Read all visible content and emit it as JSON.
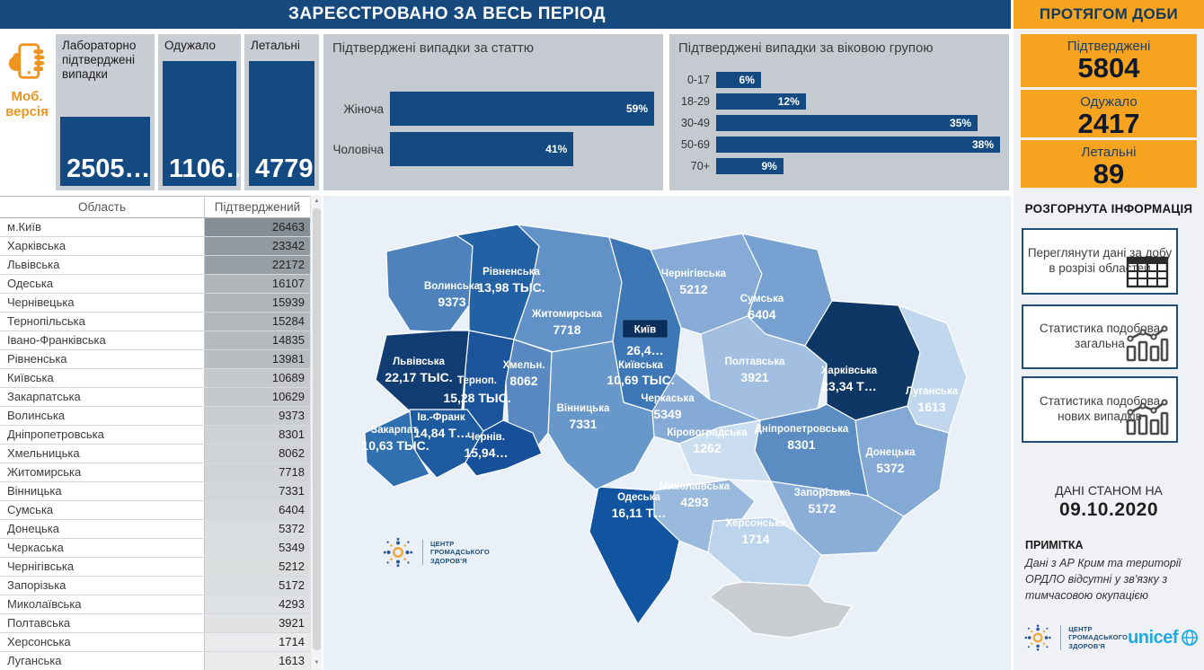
{
  "header": {
    "title": "ЗАРЕЄСТРОВАНО ЗА ВЕСЬ ПЕРІОД"
  },
  "mobile": {
    "label": "Моб. версія"
  },
  "kpi_cards": [
    {
      "label": "Лабораторно підтверджені випадки",
      "value": "2505…"
    },
    {
      "label": "Одужало",
      "value": "1106…"
    },
    {
      "label": "Летальні",
      "value": "4779"
    }
  ],
  "chart_data": [
    {
      "type": "bar",
      "orientation": "horizontal",
      "title": "Підтверджені випадки за статтю",
      "categories": [
        "Жіноча",
        "Чоловіча"
      ],
      "values": [
        59,
        41
      ],
      "value_labels": [
        "59%",
        "41%"
      ],
      "xlim": [
        0,
        59
      ],
      "bar_color": "#134a82"
    },
    {
      "type": "bar",
      "orientation": "horizontal",
      "title": "Підтверджені випадки за віковою групою",
      "categories": [
        "0-17",
        "18-29",
        "30-49",
        "50-69",
        "70+"
      ],
      "values": [
        6,
        12,
        35,
        38,
        9
      ],
      "value_labels": [
        "6%",
        "12%",
        "35%",
        "38%",
        "9%"
      ],
      "xlim": [
        0,
        38
      ],
      "bar_color": "#134a82"
    }
  ],
  "daily": {
    "title": "ПРОТЯГОМ ДОБИ",
    "cards": [
      {
        "label": "Підтверджені",
        "value": "5804"
      },
      {
        "label": "Одужало",
        "value": "2417"
      },
      {
        "label": "Летальні",
        "value": "89"
      }
    ]
  },
  "expanded_info": {
    "title": "РОЗГОРНУТА ІНФОРМАЦІЯ",
    "buttons": [
      {
        "label": "Переглянути дані за добу в розрізі областей",
        "icon": "table-icon"
      },
      {
        "label": "Статистика подобова загальна",
        "icon": "combo-chart-icon"
      },
      {
        "label": "Статистика подобова нових випадків",
        "icon": "combo-chart-icon"
      }
    ]
  },
  "data_as_of": {
    "label": "ДАНІ СТАНОМ НА",
    "date": "09.10.2020"
  },
  "note": {
    "title": "ПРИМІТКА",
    "text": "Дані з АР Крим та території ОРДЛО відсутні у зв'язку з тимчасовою окупацією"
  },
  "footer_logos": {
    "phc_lines": [
      "ЦЕНТР",
      "ГРОМАДСЬКОГО",
      "ЗДОРОВ'Я"
    ],
    "unicef_label": "unicef"
  },
  "table": {
    "columns": [
      "Область",
      "Підтверджений"
    ],
    "min": 1613,
    "max": 26463,
    "rows": [
      [
        "м.Київ",
        26463
      ],
      [
        "Харківська",
        23342
      ],
      [
        "Львівська",
        22172
      ],
      [
        "Одеська",
        16107
      ],
      [
        "Чернівецька",
        15939
      ],
      [
        "Тернопільська",
        15284
      ],
      [
        "Івано-Франківська",
        14835
      ],
      [
        "Рівненська",
        13981
      ],
      [
        "Київська",
        10689
      ],
      [
        "Закарпатська",
        10629
      ],
      [
        "Волинська",
        9373
      ],
      [
        "Дніпропетровська",
        8301
      ],
      [
        "Хмельницька",
        8062
      ],
      [
        "Житомирська",
        7718
      ],
      [
        "Вінницька",
        7331
      ],
      [
        "Сумська",
        6404
      ],
      [
        "Донецька",
        5372
      ],
      [
        "Черкаська",
        5349
      ],
      [
        "Чернігівська",
        5212
      ],
      [
        "Запорізька",
        5172
      ],
      [
        "Миколаївська",
        4293
      ],
      [
        "Полтавська",
        3921
      ],
      [
        "Херсонська",
        1714
      ],
      [
        "Луганська",
        1613
      ]
    ]
  },
  "map": {
    "kyiv_badge": {
      "name": "Київ",
      "value_label": "26,4…",
      "color": "#0a2f5c"
    },
    "regions": [
      {
        "id": "volyn",
        "name": "Волинська",
        "value": 9373,
        "value_label": "9373",
        "color": "#4e82bc"
      },
      {
        "id": "rivne",
        "name": "Рівненська",
        "value": 13981,
        "value_label": "13,98 ТЫС.",
        "color": "#2161a4"
      },
      {
        "id": "zhytomyr",
        "name": "Житомирська",
        "value": 7718,
        "value_label": "7718",
        "color": "#6191c6"
      },
      {
        "id": "kyivska",
        "name": "Київська",
        "value": 10689,
        "value_label": "10,69 ТЫС.",
        "color": "#3d77b5"
      },
      {
        "id": "chernihiv",
        "name": "Чернігівська",
        "value": 5212,
        "value_label": "5212",
        "color": "#87abd6"
      },
      {
        "id": "sumy",
        "name": "Сумська",
        "value": 6404,
        "value_label": "6404",
        "color": "#76a1d0"
      },
      {
        "id": "poltava",
        "name": "Полтавська",
        "value": 3921,
        "value_label": "3921",
        "color": "#a2bfe1"
      },
      {
        "id": "kharkiv",
        "name": "Харківська",
        "value": 23342,
        "value_label": "23,34 Т…",
        "color": "#0e3765"
      },
      {
        "id": "luhansk",
        "name": "Луганська",
        "value": 1613,
        "value_label": "1613",
        "color": "#c1d7ed"
      },
      {
        "id": "donetsk",
        "name": "Донецька",
        "value": 5372,
        "value_label": "5372",
        "color": "#84a9d5"
      },
      {
        "id": "dnipro",
        "name": "Дніпропетровська",
        "value": 8301,
        "value_label": "8301",
        "color": "#5b8cc2"
      },
      {
        "id": "zaporizhzhia",
        "name": "Запорізька",
        "value": 5172,
        "value_label": "5172",
        "color": "#8aaed7"
      },
      {
        "id": "kherson",
        "name": "Херсонська",
        "value": 1714,
        "value_label": "1714",
        "color": "#bcd4ec"
      },
      {
        "id": "mykolaiv",
        "name": "Миколаївська",
        "value": 4293,
        "value_label": "4293",
        "color": "#99b9dd"
      },
      {
        "id": "odesa",
        "name": "Одеська",
        "value": 16107,
        "value_label": "16,11 Т…",
        "color": "#1155a0"
      },
      {
        "id": "kirovohrad",
        "name": "Кіровоградська",
        "value": 1262,
        "value_label": "1262",
        "color": "#cadef0"
      },
      {
        "id": "cherkasy",
        "name": "Черкаська",
        "value": 5349,
        "value_label": "5349",
        "color": "#85aad5"
      },
      {
        "id": "vinnytsia",
        "name": "Вінницька",
        "value": 7331,
        "value_label": "7331",
        "color": "#6897c9"
      },
      {
        "id": "khmelnytsky",
        "name": "Хмельн.",
        "value": 8062,
        "value_label": "8062",
        "color": "#5989c0"
      },
      {
        "id": "ternopil",
        "name": "Терноп.",
        "value": 15284,
        "value_label": "15,28 ТЫС.",
        "color": "#1b549a"
      },
      {
        "id": "lviv",
        "name": "Львівська",
        "value": 22172,
        "value_label": "22,17 ТЫС.",
        "color": "#123d72"
      },
      {
        "id": "ivano",
        "name": "Ів.-Франк",
        "value": 14835,
        "value_label": "14,84 Т…",
        "color": "#1d5a9e"
      },
      {
        "id": "zakarpattia",
        "name": "Закарпат.",
        "value": 10629,
        "value_label": "10,63 ТЫС.",
        "color": "#3070b0"
      },
      {
        "id": "chernivtsi",
        "name": "Чернів.",
        "value": 15939,
        "value_label": "15,94…",
        "color": "#17509a"
      },
      {
        "id": "crimea",
        "name": "",
        "value": null,
        "value_label": "",
        "color": "#c9cdd1"
      }
    ]
  },
  "colors": {
    "navy": "#164a7e",
    "bar_navy": "#134a82",
    "orange": "#f6a41f",
    "unicef_blue": "#1cabe2"
  }
}
